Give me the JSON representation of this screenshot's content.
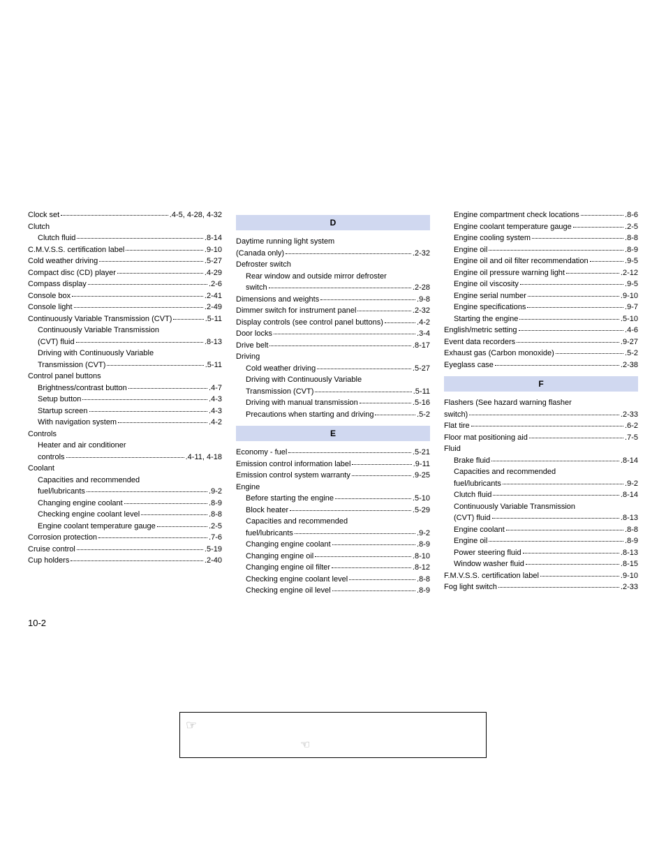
{
  "page_number": "10-2",
  "headers": {
    "D": "D",
    "E": "E",
    "F": "F"
  },
  "col1": [
    {
      "t": "entry",
      "label": "Clock set",
      "page": "4-5, 4-28, 4-32",
      "indent": 0
    },
    {
      "t": "plain",
      "label": "Clutch",
      "indent": 0
    },
    {
      "t": "entry",
      "label": "Clutch fluid",
      "page": "8-14",
      "indent": 1
    },
    {
      "t": "entry",
      "label": "C.M.V.S.S. certification label",
      "page": "9-10",
      "indent": 0
    },
    {
      "t": "entry",
      "label": "Cold weather driving",
      "page": "5-27",
      "indent": 0
    },
    {
      "t": "entry",
      "label": "Compact disc (CD) player",
      "page": "4-29",
      "indent": 0
    },
    {
      "t": "entry",
      "label": "Compass display",
      "page": "2-6",
      "indent": 0
    },
    {
      "t": "entry",
      "label": "Console box",
      "page": "2-41",
      "indent": 0
    },
    {
      "t": "entry",
      "label": "Console light",
      "page": "2-49",
      "indent": 0
    },
    {
      "t": "entry",
      "label": "Continuously Variable Transmission (CVT)",
      "page": "5-11",
      "indent": 0
    },
    {
      "t": "plain",
      "label": "Continuously Variable Transmission",
      "indent": 1
    },
    {
      "t": "entry",
      "label": "(CVT) fluid",
      "page": "8-13",
      "indent": 1
    },
    {
      "t": "plain",
      "label": "Driving with Continuously Variable",
      "indent": 1
    },
    {
      "t": "entry",
      "label": "Transmission (CVT)",
      "page": "5-11",
      "indent": 1
    },
    {
      "t": "plain",
      "label": "Control panel buttons",
      "indent": 0
    },
    {
      "t": "entry",
      "label": "Brightness/contrast button",
      "page": "4-7",
      "indent": 1
    },
    {
      "t": "entry",
      "label": "Setup button",
      "page": "4-3",
      "indent": 1
    },
    {
      "t": "entry",
      "label": "Startup screen",
      "page": "4-3",
      "indent": 1
    },
    {
      "t": "entry",
      "label": "With navigation system",
      "page": "4-2",
      "indent": 1
    },
    {
      "t": "plain",
      "label": "Controls",
      "indent": 0
    },
    {
      "t": "plain",
      "label": "Heater and air conditioner",
      "indent": 1
    },
    {
      "t": "entry",
      "label": "controls",
      "page": "4-11, 4-18",
      "indent": 1
    },
    {
      "t": "plain",
      "label": "Coolant",
      "indent": 0
    },
    {
      "t": "plain",
      "label": "Capacities and recommended",
      "indent": 1
    },
    {
      "t": "entry",
      "label": "fuel/lubricants",
      "page": "9-2",
      "indent": 1
    },
    {
      "t": "entry",
      "label": "Changing engine coolant",
      "page": "8-9",
      "indent": 1
    },
    {
      "t": "entry",
      "label": "Checking engine coolant level",
      "page": "8-8",
      "indent": 1
    },
    {
      "t": "entry",
      "label": "Engine coolant temperature gauge",
      "page": "2-5",
      "indent": 1
    },
    {
      "t": "entry",
      "label": "Corrosion protection",
      "page": "7-6",
      "indent": 0
    },
    {
      "t": "entry",
      "label": "Cruise control",
      "page": "5-19",
      "indent": 0
    },
    {
      "t": "entry",
      "label": "Cup holders",
      "page": "2-40",
      "indent": 0
    }
  ],
  "col2a": [
    {
      "t": "plain",
      "label": "Daytime running light system",
      "indent": 0
    },
    {
      "t": "entry",
      "label": "(Canada only)",
      "page": "2-32",
      "indent": 0
    },
    {
      "t": "plain",
      "label": "Defroster switch",
      "indent": 0
    },
    {
      "t": "plain",
      "label": "Rear window and outside mirror defroster",
      "indent": 1
    },
    {
      "t": "entry",
      "label": "switch",
      "page": "2-28",
      "indent": 1
    },
    {
      "t": "entry",
      "label": "Dimensions and weights",
      "page": "9-8",
      "indent": 0
    },
    {
      "t": "entry",
      "label": "Dimmer switch for instrument panel",
      "page": "2-32",
      "indent": 0
    },
    {
      "t": "entry",
      "label": "Display controls (see control panel buttons)",
      "page": "4-2",
      "indent": 0
    },
    {
      "t": "entry",
      "label": "Door locks",
      "page": "3-4",
      "indent": 0
    },
    {
      "t": "entry",
      "label": "Drive belt",
      "page": "8-17",
      "indent": 0
    },
    {
      "t": "plain",
      "label": "Driving",
      "indent": 0
    },
    {
      "t": "entry",
      "label": "Cold weather driving",
      "page": "5-27",
      "indent": 1
    },
    {
      "t": "plain",
      "label": "Driving with Continuously Variable",
      "indent": 1
    },
    {
      "t": "entry",
      "label": "Transmission (CVT)",
      "page": "5-11",
      "indent": 1
    },
    {
      "t": "entry",
      "label": "Driving with manual transmission",
      "page": "5-16",
      "indent": 1
    },
    {
      "t": "entry",
      "label": "Precautions when starting and driving",
      "page": "5-2",
      "indent": 1
    }
  ],
  "col2b": [
    {
      "t": "entry",
      "label": "Economy - fuel",
      "page": "5-21",
      "indent": 0
    },
    {
      "t": "entry",
      "label": "Emission control information label",
      "page": "9-11",
      "indent": 0
    },
    {
      "t": "entry",
      "label": "Emission control system warranty",
      "page": "9-25",
      "indent": 0
    },
    {
      "t": "plain",
      "label": "Engine",
      "indent": 0
    },
    {
      "t": "entry",
      "label": "Before starting the engine",
      "page": "5-10",
      "indent": 1
    },
    {
      "t": "entry",
      "label": "Block heater",
      "page": "5-29",
      "indent": 1
    },
    {
      "t": "plain",
      "label": "Capacities and recommended",
      "indent": 1
    },
    {
      "t": "entry",
      "label": "fuel/lubricants",
      "page": "9-2",
      "indent": 1
    },
    {
      "t": "entry",
      "label": "Changing engine coolant",
      "page": "8-9",
      "indent": 1
    },
    {
      "t": "entry",
      "label": "Changing engine oil",
      "page": "8-10",
      "indent": 1
    },
    {
      "t": "entry",
      "label": "Changing engine oil filter",
      "page": "8-12",
      "indent": 1
    },
    {
      "t": "entry",
      "label": "Checking engine coolant level",
      "page": "8-8",
      "indent": 1
    },
    {
      "t": "entry",
      "label": "Checking engine oil level",
      "page": "8-9",
      "indent": 1
    }
  ],
  "col3a": [
    {
      "t": "entry",
      "label": "Engine compartment check locations",
      "page": "8-6",
      "indent": 1
    },
    {
      "t": "entry",
      "label": "Engine coolant temperature gauge",
      "page": "2-5",
      "indent": 1
    },
    {
      "t": "entry",
      "label": "Engine cooling system",
      "page": "8-8",
      "indent": 1
    },
    {
      "t": "entry",
      "label": "Engine oil",
      "page": "8-9",
      "indent": 1
    },
    {
      "t": "entry",
      "label": "Engine oil and oil filter recommendation",
      "page": "9-5",
      "indent": 1
    },
    {
      "t": "entry",
      "label": "Engine oil pressure warning light",
      "page": "2-12",
      "indent": 1
    },
    {
      "t": "entry",
      "label": "Engine oil viscosity",
      "page": "9-5",
      "indent": 1
    },
    {
      "t": "entry",
      "label": "Engine serial number",
      "page": "9-10",
      "indent": 1
    },
    {
      "t": "entry",
      "label": "Engine specifications",
      "page": "9-7",
      "indent": 1
    },
    {
      "t": "entry",
      "label": "Starting the engine",
      "page": "5-10",
      "indent": 1
    },
    {
      "t": "entry",
      "label": "English/metric setting",
      "page": "4-6",
      "indent": 0
    },
    {
      "t": "entry",
      "label": "Event data recorders",
      "page": "9-27",
      "indent": 0
    },
    {
      "t": "entry",
      "label": "Exhaust gas (Carbon monoxide)",
      "page": "5-2",
      "indent": 0
    },
    {
      "t": "entry",
      "label": "Eyeglass case",
      "page": "2-38",
      "indent": 0
    }
  ],
  "col3b": [
    {
      "t": "plain",
      "label": "Flashers (See hazard warning flasher",
      "indent": 0
    },
    {
      "t": "entry",
      "label": "switch)",
      "page": "2-33",
      "indent": 0
    },
    {
      "t": "entry",
      "label": "Flat tire",
      "page": "6-2",
      "indent": 0
    },
    {
      "t": "entry",
      "label": "Floor mat positioning aid",
      "page": "7-5",
      "indent": 0
    },
    {
      "t": "plain",
      "label": "Fluid",
      "indent": 0
    },
    {
      "t": "entry",
      "label": "Brake fluid",
      "page": "8-14",
      "indent": 1
    },
    {
      "t": "plain",
      "label": "Capacities and recommended",
      "indent": 1
    },
    {
      "t": "entry",
      "label": "fuel/lubricants",
      "page": "9-2",
      "indent": 1
    },
    {
      "t": "entry",
      "label": "Clutch fluid",
      "page": "8-14",
      "indent": 1
    },
    {
      "t": "plain",
      "label": "Continuously Variable Transmission",
      "indent": 1
    },
    {
      "t": "entry",
      "label": "(CVT) fluid",
      "page": "8-13",
      "indent": 1
    },
    {
      "t": "entry",
      "label": "Engine coolant",
      "page": "8-8",
      "indent": 1
    },
    {
      "t": "entry",
      "label": "Engine oil",
      "page": "8-9",
      "indent": 1
    },
    {
      "t": "entry",
      "label": "Power steering fluid",
      "page": "8-13",
      "indent": 1
    },
    {
      "t": "entry",
      "label": "Window washer fluid",
      "page": "8-15",
      "indent": 1
    },
    {
      "t": "entry",
      "label": "F.M.V.S.S. certification label",
      "page": "9-10",
      "indent": 0
    },
    {
      "t": "entry",
      "label": "Fog light switch",
      "page": "2-33",
      "indent": 0
    }
  ],
  "icons": {
    "hand_right": "☞",
    "hand_left": "☜"
  }
}
